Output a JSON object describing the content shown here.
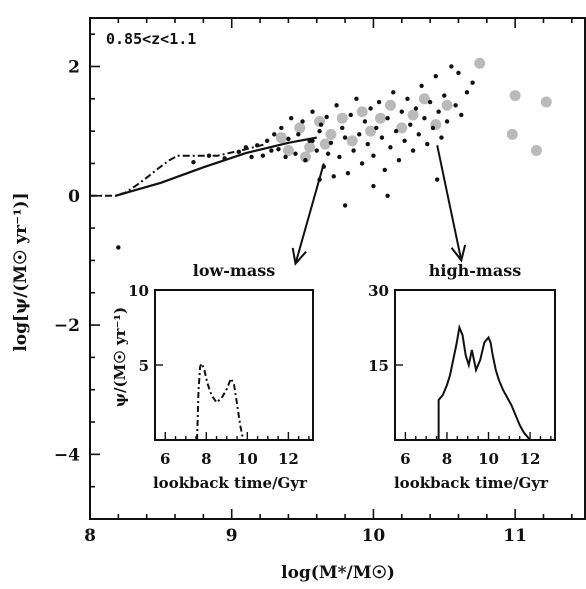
{
  "chart_data": [
    {
      "type": "scatter",
      "annotation": "0.85<z<1.1",
      "xlabel": "log(M*/M☉)",
      "ylabel": "log[ψ/(M☉ yr⁻¹)]",
      "xlim": [
        8.0,
        11.5
      ],
      "ylim": [
        -5.0,
        2.75
      ],
      "x_ticks": [
        8,
        9,
        10,
        11
      ],
      "y_ticks": [
        -4,
        -2,
        0,
        2
      ],
      "series": [
        {
          "values": [
            [
              8.2,
              -0.8
            ],
            [
              8.73,
              0.52
            ],
            [
              8.84,
              0.62
            ],
            [
              8.95,
              0.58
            ],
            [
              9.05,
              0.68
            ],
            [
              9.1,
              0.75
            ],
            [
              9.14,
              0.6
            ],
            [
              9.18,
              0.78
            ],
            [
              9.22,
              0.62
            ],
            [
              9.25,
              0.85
            ],
            [
              9.28,
              0.7
            ],
            [
              9.3,
              0.95
            ],
            [
              9.33,
              0.72
            ],
            [
              9.35,
              1.05
            ],
            [
              9.38,
              0.6
            ],
            [
              9.4,
              0.88
            ],
            [
              9.42,
              1.2
            ],
            [
              9.45,
              0.65
            ],
            [
              9.47,
              0.95
            ],
            [
              9.5,
              1.15
            ],
            [
              9.52,
              0.55
            ],
            [
              9.55,
              0.85
            ],
            [
              9.57,
              1.3
            ],
            [
              9.6,
              0.7
            ],
            [
              9.62,
              1.0
            ],
            [
              9.65,
              0.45
            ],
            [
              9.67,
              1.22
            ],
            [
              9.7,
              0.82
            ],
            [
              9.72,
              0.3
            ],
            [
              9.74,
              1.4
            ],
            [
              9.76,
              0.6
            ],
            [
              9.78,
              1.05
            ],
            [
              9.8,
              0.9
            ],
            [
              9.82,
              0.35
            ],
            [
              9.84,
              1.25
            ],
            [
              9.86,
              0.7
            ],
            [
              9.88,
              1.5
            ],
            [
              9.9,
              0.95
            ],
            [
              9.92,
              0.5
            ],
            [
              9.94,
              1.15
            ],
            [
              9.96,
              0.8
            ],
            [
              9.98,
              1.35
            ],
            [
              10.0,
              0.62
            ],
            [
              10.02,
              1.05
            ],
            [
              10.04,
              1.45
            ],
            [
              10.06,
              0.9
            ],
            [
              10.08,
              0.4
            ],
            [
              10.1,
              1.2
            ],
            [
              10.12,
              0.75
            ],
            [
              10.14,
              1.6
            ],
            [
              10.16,
              1.0
            ],
            [
              10.18,
              0.55
            ],
            [
              10.2,
              1.3
            ],
            [
              10.22,
              0.85
            ],
            [
              10.24,
              1.5
            ],
            [
              10.26,
              1.1
            ],
            [
              10.28,
              0.7
            ],
            [
              10.3,
              1.35
            ],
            [
              10.32,
              0.95
            ],
            [
              10.34,
              1.7
            ],
            [
              10.36,
              1.2
            ],
            [
              10.38,
              0.8
            ],
            [
              10.4,
              1.45
            ],
            [
              10.42,
              1.05
            ],
            [
              10.44,
              1.85
            ],
            [
              10.46,
              1.3
            ],
            [
              10.48,
              0.9
            ],
            [
              10.5,
              1.55
            ],
            [
              10.52,
              1.15
            ],
            [
              10.55,
              2.0
            ],
            [
              10.58,
              1.4
            ],
            [
              10.6,
              1.9
            ],
            [
              10.62,
              1.25
            ],
            [
              10.66,
              1.6
            ],
            [
              10.7,
              1.75
            ],
            [
              9.63,
              1.1
            ],
            [
              9.57,
              0.85
            ],
            [
              9.68,
              0.65
            ],
            [
              10.1,
              0.0
            ],
            [
              9.8,
              -0.15
            ],
            [
              9.62,
              0.25
            ],
            [
              10.0,
              0.15
            ],
            [
              10.45,
              0.25
            ]
          ]
        },
        {
          "values": [
            [
              9.35,
              0.9
            ],
            [
              9.48,
              1.05
            ],
            [
              9.55,
              0.75
            ],
            [
              9.62,
              1.15
            ],
            [
              9.7,
              0.95
            ],
            [
              9.78,
              1.2
            ],
            [
              9.85,
              0.85
            ],
            [
              9.92,
              1.3
            ],
            [
              9.98,
              1.0
            ],
            [
              10.05,
              1.2
            ],
            [
              10.12,
              1.4
            ],
            [
              10.2,
              1.05
            ],
            [
              10.28,
              1.25
            ],
            [
              10.36,
              1.5
            ],
            [
              10.44,
              1.1
            ],
            [
              10.52,
              1.4
            ],
            [
              10.75,
              2.05
            ],
            [
              11.0,
              1.55
            ],
            [
              11.22,
              1.45
            ],
            [
              11.15,
              0.7
            ],
            [
              10.98,
              0.95
            ],
            [
              9.4,
              0.7
            ],
            [
              9.52,
              0.6
            ],
            [
              9.66,
              0.8
            ]
          ]
        },
        {
          "values": [
            [
              8.0,
              0.0
            ],
            [
              8.1,
              0.0
            ],
            [
              8.18,
              0.0
            ],
            [
              8.25,
              0.05
            ],
            [
              8.32,
              0.15
            ],
            [
              8.4,
              0.28
            ],
            [
              8.48,
              0.42
            ],
            [
              8.56,
              0.55
            ],
            [
              8.62,
              0.62
            ],
            [
              8.9,
              0.62
            ],
            [
              9.1,
              0.72
            ],
            [
              9.24,
              0.8
            ]
          ]
        },
        {
          "values": [
            [
              8.18,
              0.0
            ],
            [
              8.5,
              0.2
            ],
            [
              8.8,
              0.44
            ],
            [
              9.1,
              0.66
            ],
            [
              9.4,
              0.82
            ],
            [
              9.6,
              0.9
            ]
          ]
        }
      ],
      "arrows": [
        {
          "label": "low-mass",
          "from": [
            9.65,
            0.5
          ],
          "to": [
            9.45,
            -1.05
          ]
        },
        {
          "label": "high-mass",
          "from": [
            10.45,
            0.78
          ],
          "to": [
            10.62,
            -1.0
          ]
        }
      ]
    },
    {
      "type": "line",
      "title": "low-mass",
      "xlabel": "lookback time/Gyr",
      "ylabel": "ψ/(M☉ yr⁻¹)",
      "xlim": [
        5.5,
        13.2
      ],
      "ylim": [
        0,
        10
      ],
      "x_ticks": [
        6,
        8,
        10,
        12
      ],
      "y_ticks": [
        5,
        10
      ],
      "series": [
        {
          "x": [
            7.55,
            7.62,
            7.7,
            7.78,
            7.9,
            8.05,
            8.25,
            8.5,
            8.75,
            9.0,
            9.2,
            9.35,
            9.5,
            9.65,
            9.8
          ],
          "values": [
            0,
            3.3,
            4.9,
            5.1,
            4.7,
            3.8,
            3.0,
            2.5,
            2.8,
            3.4,
            4.1,
            3.7,
            2.4,
            1.0,
            0
          ]
        }
      ]
    },
    {
      "type": "line",
      "title": "high-mass",
      "xlabel": "lookback time/Gyr",
      "ylabel": "",
      "xlim": [
        5.5,
        13.2
      ],
      "ylim": [
        0,
        30
      ],
      "x_ticks": [
        6,
        8,
        10,
        12
      ],
      "y_ticks": [
        15,
        30
      ],
      "series": [
        {
          "x": [
            7.6,
            7.6,
            7.8,
            8.0,
            8.15,
            8.3,
            8.45,
            8.6,
            8.75,
            8.9,
            9.05,
            9.2,
            9.4,
            9.6,
            9.8,
            10.0,
            10.1,
            10.2,
            10.35,
            10.5,
            10.7,
            10.9,
            11.1,
            11.3,
            11.5,
            11.7,
            12.0
          ],
          "values": [
            0,
            8,
            9,
            11,
            13,
            16,
            19,
            22.5,
            21,
            17,
            15,
            18,
            14,
            16,
            19.5,
            20.5,
            19.5,
            17,
            14,
            12,
            10,
            8.5,
            7,
            5,
            3,
            1.5,
            0
          ]
        }
      ]
    }
  ]
}
